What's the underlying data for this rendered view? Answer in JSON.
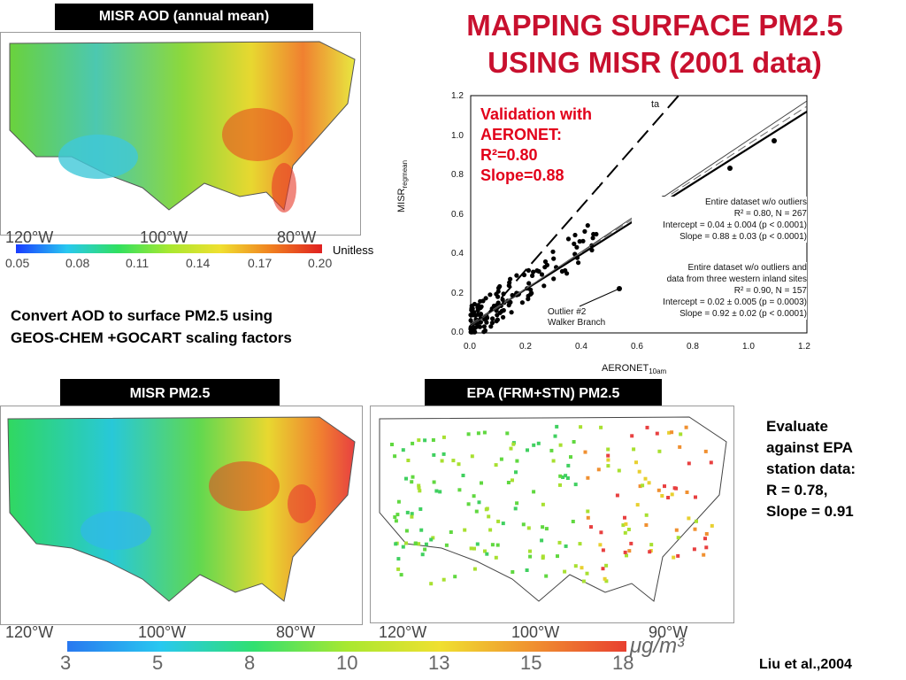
{
  "title_line1": "MAPPING SURFACE PM2.5",
  "title_line2": "USING MISR (2001 data)",
  "aod_label": "MISR AOD (annual mean)",
  "aod_units": "Unitless",
  "aod_lon_labels": [
    "120°W",
    "100°W",
    "80°W"
  ],
  "aod_colorbar_ticks": [
    "0.05",
    "0.08",
    "0.11",
    "0.14",
    "0.17",
    "0.20"
  ],
  "convert_text_line1": "Convert AOD to surface PM2.5 using",
  "convert_text_line2": "GEOS-CHEM +GOCART scaling factors",
  "misr_pm_label": "MISR PM2.5",
  "epa_label": "EPA (FRM+STN) PM2.5",
  "pm_lon_labels_left": [
    "120°W",
    "100°W",
    "80°W"
  ],
  "pm_lon_labels_right": [
    "120°W",
    "100°W",
    "90°W"
  ],
  "pm_colorbar_ticks": [
    "3",
    "5",
    "8",
    "10",
    "13",
    "15",
    "18"
  ],
  "pm_units": "μg/m³",
  "evaluate_text": [
    "Evaluate",
    "against EPA",
    "station data:",
    "R = 0.78,",
    "Slope = 0.91"
  ],
  "citation": "Liu et al.,2004",
  "scatter": {
    "validation_text": [
      "Validation with",
      "AERONET:",
      "R²=0.80",
      "Slope=0.88"
    ],
    "legend_top_fragment": "ta",
    "stats_block1": [
      "Entire dataset w/o outliers",
      "R² = 0.80, N = 267",
      "Intercept = 0.04 ± 0.004 (p < 0.0001)",
      "Slope = 0.88 ± 0.03 (p < 0.0001)"
    ],
    "stats_block2": [
      "Entire dataset w/o outliers and",
      "data from three western inland sites",
      "R² = 0.90, N = 157",
      "Intercept = 0.02 ± 0.005 (p = 0.0003)",
      "Slope = 0.92 ± 0.02 (p < 0.0001)"
    ],
    "outlier_label": [
      "Outlier #2",
      "Walker Branch"
    ],
    "xlabel": "AERONET",
    "xlabel_sub": "10am",
    "ylabel": "MISR",
    "ylabel_sub": "regmean",
    "x_ticks": [
      "0.0",
      "0.2",
      "0.4",
      "0.6",
      "0.8",
      "1.0",
      "1.2"
    ],
    "y_ticks": [
      "0.0",
      "0.2",
      "0.4",
      "0.6",
      "0.8",
      "1.0",
      "1.2"
    ]
  },
  "colors": {
    "title": "#c8102e",
    "validation": "#e2001a"
  }
}
